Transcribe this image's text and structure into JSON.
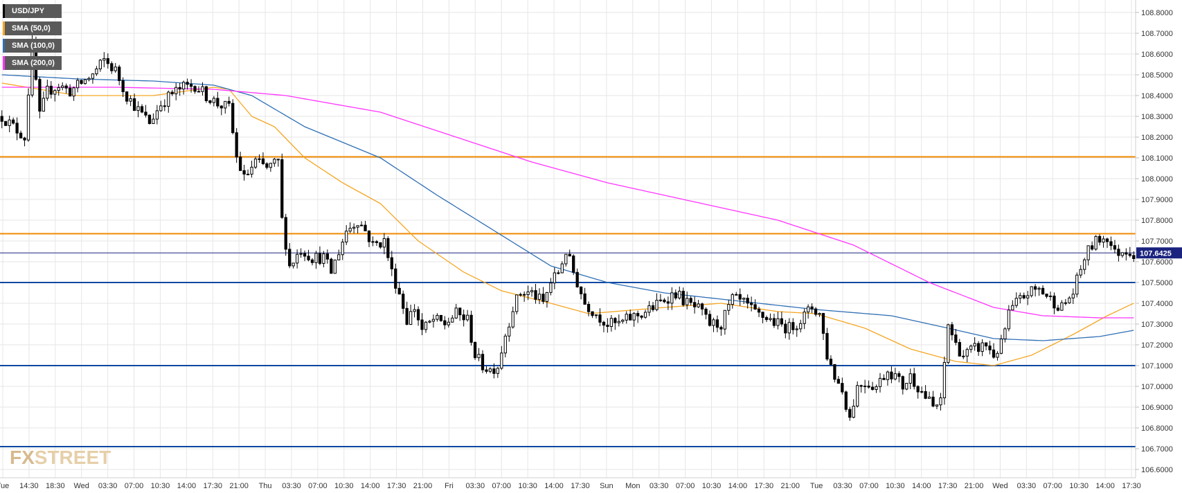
{
  "watermark": {
    "fx": "FX",
    "street": "STREET"
  },
  "legend": [
    {
      "label": "USD/JPY",
      "color": "#000000"
    },
    {
      "label": "SMA (50,0)",
      "color": "#f5a623"
    },
    {
      "label": "SMA (100,0)",
      "color": "#2f6fb4"
    },
    {
      "label": "SMA (200,0)",
      "color": "#ff33ff"
    }
  ],
  "colors": {
    "candle_up": "#ffffff",
    "candle_down": "#000000",
    "resistance_orange": "#f08a00",
    "support_blue": "#0d47a1",
    "price_line": "#1a237e",
    "sma50": "#f5a623",
    "sma100": "#2f6fb4",
    "sma200": "#ff33ff",
    "grid": "#e6e6e6",
    "price_tag_bg": "#1a237e"
  },
  "chart_data": {
    "type": "candlestick",
    "title": "",
    "symbol": "USD/JPY",
    "ylim": [
      106.56,
      108.86
    ],
    "y_ticks": [
      "106.6000",
      "106.7000",
      "106.8000",
      "106.9000",
      "107.0000",
      "107.1000",
      "107.2000",
      "107.3000",
      "107.4000",
      "107.5000",
      "107.6000",
      "107.7000",
      "107.8000",
      "107.9000",
      "108.0000",
      "108.1000",
      "108.2000",
      "108.3000",
      "108.4000",
      "108.5000",
      "108.6000",
      "108.7000",
      "108.8000"
    ],
    "x_ticks": [
      "Tue",
      "14:30",
      "18:30",
      "Wed",
      "03:30",
      "07:00",
      "10:30",
      "14:00",
      "17:30",
      "21:00",
      "Thu",
      "03:30",
      "07:00",
      "10:30",
      "14:00",
      "17:30",
      "21:00",
      "Fri",
      "03:30",
      "07:00",
      "10:30",
      "14:00",
      "17:30",
      "Sun",
      "Mon",
      "03:30",
      "07:00",
      "10:30",
      "14:00",
      "17:30",
      "21:00",
      "Tue",
      "03:30",
      "07:00",
      "10:30",
      "14:00",
      "17:30",
      "21:00",
      "Wed",
      "03:30",
      "07:00",
      "10:30",
      "14:00",
      "17:30"
    ],
    "bars_count": 300,
    "current_price": 107.6425,
    "current_price_label": "107.6425",
    "horizontal_levels": [
      {
        "value": 108.105,
        "kind": "resistance"
      },
      {
        "value": 107.735,
        "kind": "resistance"
      },
      {
        "value": 107.5,
        "kind": "support"
      },
      {
        "value": 107.1,
        "kind": "support"
      },
      {
        "value": 106.71,
        "kind": "support"
      }
    ],
    "close_path": [
      [
        0,
        108.3
      ],
      [
        3,
        108.25
      ],
      [
        6,
        108.2
      ],
      [
        8,
        108.64
      ],
      [
        10,
        108.3
      ],
      [
        12,
        108.42
      ],
      [
        15,
        108.45
      ],
      [
        18,
        108.42
      ],
      [
        21,
        108.46
      ],
      [
        24,
        108.5
      ],
      [
        27,
        108.57
      ],
      [
        30,
        108.52
      ],
      [
        33,
        108.4
      ],
      [
        36,
        108.33
      ],
      [
        39,
        108.27
      ],
      [
        42,
        108.36
      ],
      [
        45,
        108.41
      ],
      [
        48,
        108.44
      ],
      [
        51,
        108.45
      ],
      [
        54,
        108.4
      ],
      [
        57,
        108.36
      ],
      [
        60,
        108.34
      ],
      [
        62,
        108.1
      ],
      [
        64,
        108.0
      ],
      [
        67,
        108.08
      ],
      [
        70,
        108.05
      ],
      [
        73,
        108.08
      ],
      [
        74,
        107.8
      ],
      [
        76,
        107.58
      ],
      [
        79,
        107.66
      ],
      [
        82,
        107.62
      ],
      [
        85,
        107.62
      ],
      [
        87,
        107.55
      ],
      [
        89,
        107.65
      ],
      [
        91,
        107.75
      ],
      [
        94,
        107.8
      ],
      [
        96,
        107.75
      ],
      [
        98,
        107.68
      ],
      [
        101,
        107.7
      ],
      [
        103,
        107.55
      ],
      [
        105,
        107.45
      ],
      [
        107,
        107.32
      ],
      [
        109,
        107.38
      ],
      [
        111,
        107.27
      ],
      [
        114,
        107.32
      ],
      [
        117,
        107.3
      ],
      [
        120,
        107.35
      ],
      [
        123,
        107.32
      ],
      [
        125,
        107.15
      ],
      [
        127,
        107.1
      ],
      [
        129,
        107.08
      ],
      [
        131,
        107.1
      ],
      [
        133,
        107.25
      ],
      [
        135,
        107.38
      ],
      [
        137,
        107.45
      ],
      [
        140,
        107.45
      ],
      [
        143,
        107.4
      ],
      [
        145,
        107.5
      ],
      [
        147,
        107.55
      ],
      [
        149,
        107.65
      ],
      [
        151,
        107.55
      ],
      [
        154,
        107.4
      ],
      [
        157,
        107.35
      ],
      [
        160,
        107.3
      ],
      [
        163,
        107.3
      ],
      [
        166,
        107.33
      ],
      [
        169,
        107.35
      ],
      [
        172,
        107.38
      ],
      [
        175,
        107.42
      ],
      [
        178,
        107.45
      ],
      [
        181,
        107.4
      ],
      [
        184,
        107.37
      ],
      [
        187,
        107.3
      ],
      [
        190,
        107.3
      ],
      [
        193,
        107.42
      ],
      [
        196,
        107.4
      ],
      [
        199,
        107.35
      ],
      [
        202,
        107.33
      ],
      [
        205,
        107.3
      ],
      [
        208,
        107.28
      ],
      [
        211,
        107.32
      ],
      [
        214,
        107.38
      ],
      [
        216,
        107.35
      ],
      [
        218,
        107.15
      ],
      [
        220,
        107.05
      ],
      [
        222,
        106.98
      ],
      [
        224,
        106.85
      ],
      [
        226,
        107.0
      ],
      [
        228,
        107.02
      ],
      [
        231,
        107.0
      ],
      [
        234,
        107.08
      ],
      [
        236,
        107.05
      ],
      [
        238,
        107.0
      ],
      [
        240,
        107.05
      ],
      [
        242,
        107.0
      ],
      [
        244,
        106.95
      ],
      [
        246,
        106.9
      ],
      [
        248,
        106.92
      ],
      [
        250,
        107.3
      ],
      [
        252,
        107.2
      ],
      [
        254,
        107.15
      ],
      [
        257,
        107.18
      ],
      [
        260,
        107.2
      ],
      [
        262,
        107.15
      ],
      [
        264,
        107.2
      ],
      [
        266,
        107.35
      ],
      [
        268,
        107.4
      ],
      [
        271,
        107.45
      ],
      [
        274,
        107.47
      ],
      [
        277,
        107.42
      ],
      [
        280,
        107.38
      ],
      [
        283,
        107.45
      ],
      [
        286,
        107.62
      ],
      [
        288,
        107.68
      ],
      [
        290,
        107.71
      ],
      [
        292,
        107.72
      ],
      [
        294,
        107.64
      ],
      [
        297,
        107.66
      ],
      [
        299,
        107.64
      ]
    ],
    "sma50_path": [
      [
        0,
        108.46
      ],
      [
        20,
        108.4
      ],
      [
        40,
        108.4
      ],
      [
        56,
        108.44
      ],
      [
        60,
        108.43
      ],
      [
        66,
        108.3
      ],
      [
        72,
        108.25
      ],
      [
        80,
        108.1
      ],
      [
        90,
        107.98
      ],
      [
        100,
        107.88
      ],
      [
        110,
        107.7
      ],
      [
        122,
        107.55
      ],
      [
        132,
        107.46
      ],
      [
        145,
        107.4
      ],
      [
        155,
        107.35
      ],
      [
        175,
        107.38
      ],
      [
        190,
        107.4
      ],
      [
        205,
        107.36
      ],
      [
        215,
        107.35
      ],
      [
        228,
        107.28
      ],
      [
        240,
        107.18
      ],
      [
        252,
        107.12
      ],
      [
        262,
        107.1
      ],
      [
        272,
        107.15
      ],
      [
        283,
        107.25
      ],
      [
        292,
        107.34
      ],
      [
        299,
        107.4
      ]
    ],
    "sma100_path": [
      [
        0,
        108.5
      ],
      [
        20,
        108.48
      ],
      [
        40,
        108.47
      ],
      [
        56,
        108.45
      ],
      [
        66,
        108.4
      ],
      [
        80,
        108.25
      ],
      [
        100,
        108.1
      ],
      [
        115,
        107.92
      ],
      [
        130,
        107.75
      ],
      [
        145,
        107.58
      ],
      [
        160,
        107.5
      ],
      [
        175,
        107.45
      ],
      [
        195,
        107.41
      ],
      [
        215,
        107.37
      ],
      [
        235,
        107.34
      ],
      [
        250,
        107.28
      ],
      [
        262,
        107.23
      ],
      [
        275,
        107.22
      ],
      [
        290,
        107.24
      ],
      [
        299,
        107.27
      ]
    ],
    "sma200_path": [
      [
        0,
        108.44
      ],
      [
        30,
        108.44
      ],
      [
        56,
        108.43
      ],
      [
        75,
        108.4
      ],
      [
        100,
        108.32
      ],
      [
        120,
        108.2
      ],
      [
        140,
        108.08
      ],
      [
        160,
        107.98
      ],
      [
        180,
        107.9
      ],
      [
        205,
        107.8
      ],
      [
        225,
        107.68
      ],
      [
        245,
        107.5
      ],
      [
        262,
        107.38
      ],
      [
        275,
        107.34
      ],
      [
        290,
        107.33
      ],
      [
        299,
        107.33
      ]
    ]
  }
}
